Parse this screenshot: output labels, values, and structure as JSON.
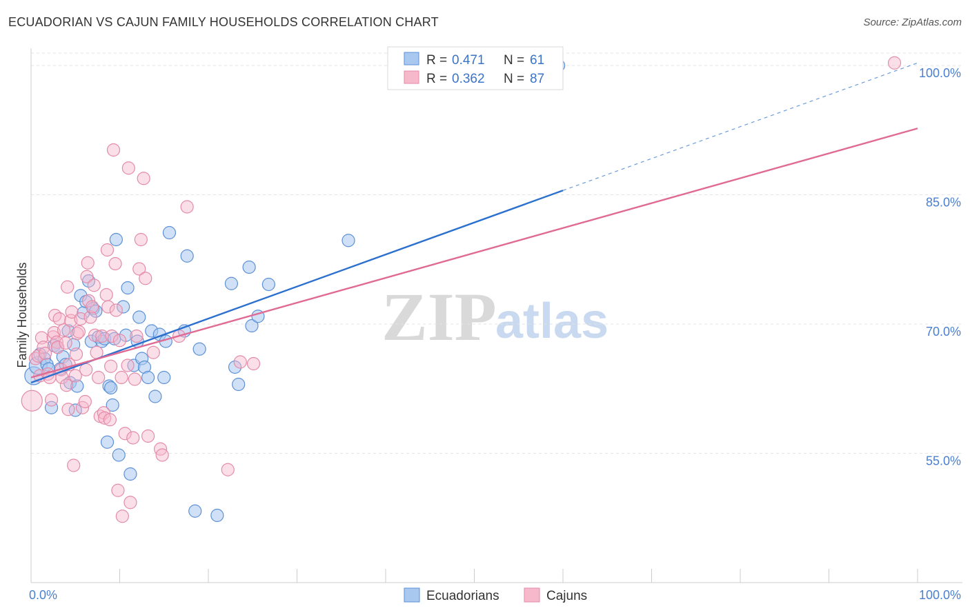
{
  "header": {
    "title": "ECUADORIAN VS CAJUN FAMILY HOUSEHOLDS CORRELATION CHART",
    "source": "Source: ZipAtlas.com"
  },
  "watermark": {
    "zip": "ZIP",
    "atlas": "atlas"
  },
  "colors": {
    "ecuadorian_fill": "#a9c8f0",
    "ecuadorian_stroke": "#5b8fd6",
    "ecuadorian_line": "#2b6fcf",
    "cajun_fill": "#f6b9cc",
    "cajun_stroke": "#e48aa7",
    "cajun_line": "#e06a93",
    "axis_text": "#4a7fd0",
    "grid": "#e3e3e3"
  },
  "legend": {
    "rows": [
      {
        "r_label": "R =",
        "r_value": "0.471",
        "n_label": "N =",
        "n_value": "61"
      },
      {
        "r_label": "R =",
        "r_value": "0.362",
        "n_label": "N =",
        "n_value": "87"
      }
    ]
  },
  "chart_data": {
    "type": "scatter",
    "title": "ECUADORIAN VS CAJUN FAMILY HOUSEHOLDS CORRELATION CHART",
    "xlabel": "",
    "ylabel": "Family Households",
    "xlim": [
      0,
      100
    ],
    "ylim": [
      40,
      102
    ],
    "x_tick_labels": [
      "0.0%",
      "100.0%"
    ],
    "y_ticks": [
      55,
      70,
      85,
      100
    ],
    "y_tick_labels": [
      "55.0%",
      "70.0%",
      "85.0%",
      "100.0%"
    ],
    "grid": true,
    "legend_position": "bottom",
    "series": [
      {
        "name": "Ecuadorians",
        "r": 0.471,
        "n": 61,
        "trend": {
          "x0": 0,
          "y0": 63.2,
          "x1": 60,
          "y1": 85.5,
          "dashed_to_x": 100,
          "dashed_to_y": 100.3
        },
        "points": [
          [
            0.3,
            64.0
          ],
          [
            0.8,
            65.2
          ],
          [
            1.0,
            66.5
          ],
          [
            1.5,
            66.0
          ],
          [
            1.8,
            65.3
          ],
          [
            2.0,
            64.8
          ],
          [
            2.3,
            60.3
          ],
          [
            2.6,
            67.5
          ],
          [
            3.0,
            67.3
          ],
          [
            3.3,
            64.8
          ],
          [
            3.6,
            66.2
          ],
          [
            3.9,
            65.3
          ],
          [
            4.2,
            69.2
          ],
          [
            4.4,
            63.2
          ],
          [
            4.8,
            67.6
          ],
          [
            5.0,
            60.0
          ],
          [
            5.2,
            62.8
          ],
          [
            5.6,
            73.3
          ],
          [
            5.9,
            71.3
          ],
          [
            6.2,
            72.6
          ],
          [
            6.5,
            75.0
          ],
          [
            6.8,
            68.0
          ],
          [
            7.0,
            71.8
          ],
          [
            7.3,
            71.5
          ],
          [
            7.6,
            68.5
          ],
          [
            8.0,
            68.0
          ],
          [
            8.3,
            68.3
          ],
          [
            8.6,
            56.3
          ],
          [
            8.8,
            62.8
          ],
          [
            9.0,
            62.6
          ],
          [
            9.2,
            60.6
          ],
          [
            9.4,
            68.3
          ],
          [
            9.6,
            79.8
          ],
          [
            9.9,
            54.8
          ],
          [
            10.4,
            72.0
          ],
          [
            10.7,
            68.7
          ],
          [
            10.9,
            74.2
          ],
          [
            11.2,
            52.6
          ],
          [
            11.6,
            65.2
          ],
          [
            12.0,
            68.0
          ],
          [
            12.2,
            70.8
          ],
          [
            12.5,
            66.0
          ],
          [
            12.8,
            65.0
          ],
          [
            13.2,
            63.8
          ],
          [
            13.6,
            69.2
          ],
          [
            14.0,
            61.6
          ],
          [
            14.5,
            68.8
          ],
          [
            15.0,
            63.8
          ],
          [
            15.2,
            68.0
          ],
          [
            15.6,
            80.6
          ],
          [
            17.3,
            69.2
          ],
          [
            17.6,
            77.9
          ],
          [
            18.5,
            48.3
          ],
          [
            19.0,
            67.1
          ],
          [
            21.0,
            47.8
          ],
          [
            22.6,
            74.7
          ],
          [
            23.0,
            65.0
          ],
          [
            23.4,
            63.0
          ],
          [
            24.6,
            76.6
          ],
          [
            24.9,
            69.8
          ],
          [
            25.6,
            70.9
          ],
          [
            26.8,
            74.6
          ],
          [
            35.8,
            79.7
          ],
          [
            59.5,
            100.0
          ]
        ]
      },
      {
        "name": "Cajuns",
        "r": 0.362,
        "n": 87,
        "trend": {
          "x0": 0,
          "y0": 63.8,
          "x1": 100,
          "y1": 92.7
        },
        "points": [
          [
            0.1,
            61.1
          ],
          [
            0.5,
            66.0
          ],
          [
            0.8,
            66.3
          ],
          [
            1.0,
            64.0
          ],
          [
            1.2,
            68.4
          ],
          [
            1.4,
            67.3
          ],
          [
            1.6,
            66.6
          ],
          [
            1.9,
            64.2
          ],
          [
            2.1,
            63.8
          ],
          [
            2.3,
            61.2
          ],
          [
            2.5,
            68.5
          ],
          [
            2.6,
            69.0
          ],
          [
            2.7,
            71.0
          ],
          [
            2.9,
            67.9
          ],
          [
            3.0,
            67.3
          ],
          [
            3.2,
            70.6
          ],
          [
            3.4,
            64.7
          ],
          [
            3.5,
            63.8
          ],
          [
            3.7,
            69.3
          ],
          [
            3.9,
            67.8
          ],
          [
            4.0,
            62.9
          ],
          [
            4.1,
            74.3
          ],
          [
            4.2,
            60.1
          ],
          [
            4.3,
            65.3
          ],
          [
            4.5,
            70.4
          ],
          [
            4.6,
            71.4
          ],
          [
            4.8,
            53.6
          ],
          [
            5.0,
            64.0
          ],
          [
            5.1,
            66.5
          ],
          [
            5.2,
            68.9
          ],
          [
            5.4,
            69.1
          ],
          [
            5.6,
            70.6
          ],
          [
            5.8,
            60.3
          ],
          [
            6.1,
            61.0
          ],
          [
            6.2,
            64.7
          ],
          [
            6.3,
            75.5
          ],
          [
            6.4,
            77.1
          ],
          [
            6.5,
            72.7
          ],
          [
            6.7,
            70.8
          ],
          [
            6.9,
            72.0
          ],
          [
            7.1,
            74.5
          ],
          [
            7.2,
            68.7
          ],
          [
            7.4,
            66.7
          ],
          [
            7.6,
            63.8
          ],
          [
            7.8,
            59.3
          ],
          [
            8.0,
            68.6
          ],
          [
            8.2,
            59.7
          ],
          [
            8.3,
            59.1
          ],
          [
            8.5,
            73.4
          ],
          [
            8.6,
            78.6
          ],
          [
            8.7,
            72.0
          ],
          [
            8.9,
            58.9
          ],
          [
            9.0,
            65.1
          ],
          [
            9.1,
            68.6
          ],
          [
            9.3,
            90.2
          ],
          [
            9.5,
            77.0
          ],
          [
            9.6,
            71.6
          ],
          [
            9.8,
            50.7
          ],
          [
            10.0,
            68.1
          ],
          [
            10.2,
            63.8
          ],
          [
            10.3,
            47.7
          ],
          [
            10.6,
            57.3
          ],
          [
            10.9,
            65.2
          ],
          [
            11.0,
            88.1
          ],
          [
            11.2,
            49.3
          ],
          [
            11.5,
            56.8
          ],
          [
            11.7,
            63.6
          ],
          [
            11.9,
            68.6
          ],
          [
            12.2,
            76.4
          ],
          [
            12.4,
            79.8
          ],
          [
            12.7,
            86.9
          ],
          [
            12.9,
            75.3
          ],
          [
            13.2,
            57.0
          ],
          [
            13.8,
            66.7
          ],
          [
            14.6,
            55.5
          ],
          [
            14.8,
            54.8
          ],
          [
            16.7,
            68.6
          ],
          [
            17.6,
            83.6
          ],
          [
            22.2,
            53.1
          ],
          [
            23.6,
            65.6
          ],
          [
            25.1,
            65.4
          ],
          [
            97.4,
            100.3
          ]
        ]
      }
    ]
  },
  "bottom_legend": {
    "items": [
      {
        "label": "Ecuadorians"
      },
      {
        "label": "Cajuns"
      }
    ]
  }
}
